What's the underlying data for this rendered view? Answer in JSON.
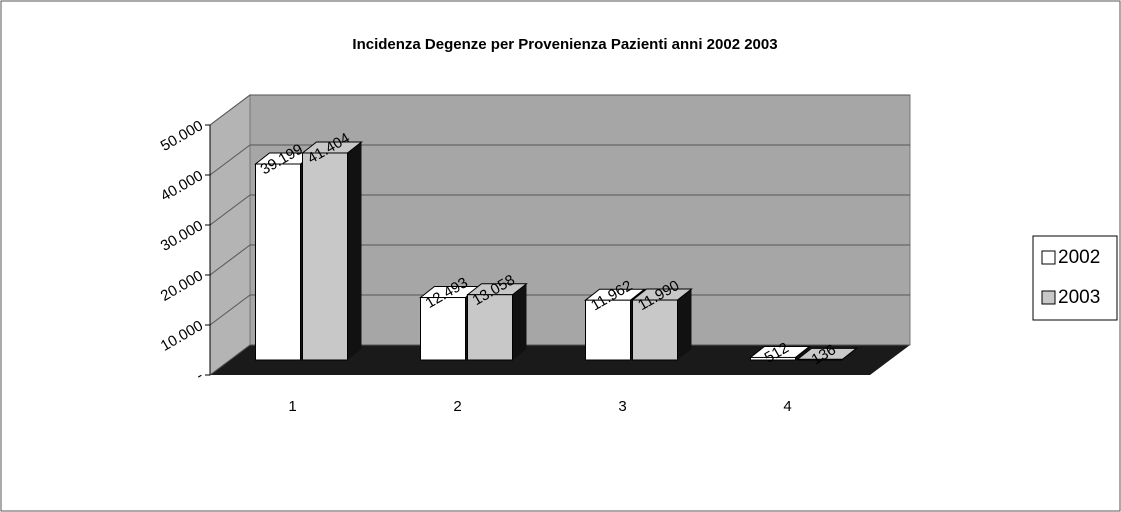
{
  "chart_data": {
    "type": "bar3d",
    "title": "Incidenza Degenze per Provenienza Pazienti anni 2002 2003",
    "categories": [
      "1",
      "2",
      "3",
      "4"
    ],
    "series": [
      {
        "name": "2002",
        "color": "#ffffff",
        "values": [
          39199,
          12493,
          11962,
          512
        ],
        "value_labels": [
          "39.199",
          "12.493",
          "11.962",
          "512"
        ]
      },
      {
        "name": "2003",
        "color": "#c8c8c8",
        "values": [
          41404,
          13058,
          11990,
          136
        ],
        "value_labels": [
          "41.404",
          "13.058",
          "11.990",
          "136"
        ]
      }
    ],
    "ylim": [
      0,
      50000
    ],
    "yticks": [
      {
        "value": 0,
        "label": "-"
      },
      {
        "value": 10000,
        "label": "10.000"
      },
      {
        "value": 20000,
        "label": "20.000"
      },
      {
        "value": 30000,
        "label": "30.000"
      },
      {
        "value": 40000,
        "label": "40.000"
      },
      {
        "value": 50000,
        "label": "50.000"
      }
    ],
    "grid": true,
    "legend": "right"
  }
}
